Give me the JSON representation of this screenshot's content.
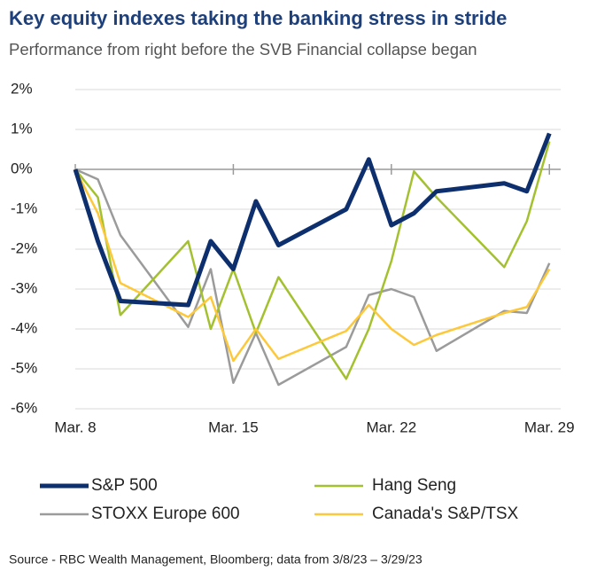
{
  "chart_data": {
    "type": "line",
    "title": "Key equity indexes taking the banking stress in stride",
    "subtitle": "Performance from right before the SVB Financial collapse began",
    "source": "Source - RBC Wealth Management, Bloomberg; data from 3/8/23 – 3/29/23",
    "x": [
      8,
      9,
      10,
      13,
      14,
      15,
      16,
      17,
      20,
      21,
      22,
      23,
      24,
      27,
      28,
      29
    ],
    "xlim": [
      8,
      29.5
    ],
    "xticks": [
      {
        "value": 8,
        "label": "Mar. 8"
      },
      {
        "value": 15,
        "label": "Mar. 15"
      },
      {
        "value": 22,
        "label": "Mar. 22"
      },
      {
        "value": 29,
        "label": "Mar. 29"
      }
    ],
    "ylim": [
      -6,
      2
    ],
    "yticks": [
      {
        "value": -6,
        "label": "-6%"
      },
      {
        "value": -5,
        "label": "-5%"
      },
      {
        "value": -4,
        "label": "-4%"
      },
      {
        "value": -3,
        "label": "-3%"
      },
      {
        "value": -2,
        "label": "-2%"
      },
      {
        "value": -1,
        "label": "-1%"
      },
      {
        "value": 0,
        "label": "0%"
      },
      {
        "value": 1,
        "label": "1%"
      },
      {
        "value": 2,
        "label": "2%"
      }
    ],
    "grid": true,
    "series": [
      {
        "name": "S&P 500",
        "color": "#0e2f6e",
        "values": [
          0,
          -1.8,
          -3.3,
          -3.4,
          -1.8,
          -2.5,
          -0.8,
          -1.9,
          -1.0,
          0.25,
          -1.4,
          -1.1,
          -0.55,
          -0.35,
          -0.55,
          0.9
        ]
      },
      {
        "name": "Hang Seng",
        "color": "#a3c12f",
        "values": [
          0,
          -0.7,
          -3.65,
          -1.8,
          -4.0,
          -2.5,
          -4.1,
          -2.7,
          -5.25,
          -4.0,
          -2.3,
          -0.05,
          -0.7,
          -2.45,
          -1.3,
          0.7
        ]
      },
      {
        "name": "STOXX Europe 600",
        "color": "#9b9b9b",
        "values": [
          0,
          -0.25,
          -1.65,
          -3.95,
          -2.5,
          -5.35,
          -4.1,
          -5.4,
          -4.45,
          -3.15,
          -3.0,
          -3.2,
          -4.55,
          -3.55,
          -3.6,
          -2.35
        ]
      },
      {
        "name": "Canada's S&P/TSX",
        "color": "#fdc83a",
        "values": [
          0,
          -1.1,
          -2.85,
          -3.7,
          -3.2,
          -4.8,
          -4.0,
          -4.75,
          -4.05,
          -3.4,
          -4.0,
          -4.4,
          -4.15,
          -3.6,
          -3.45,
          -2.5
        ]
      }
    ]
  }
}
